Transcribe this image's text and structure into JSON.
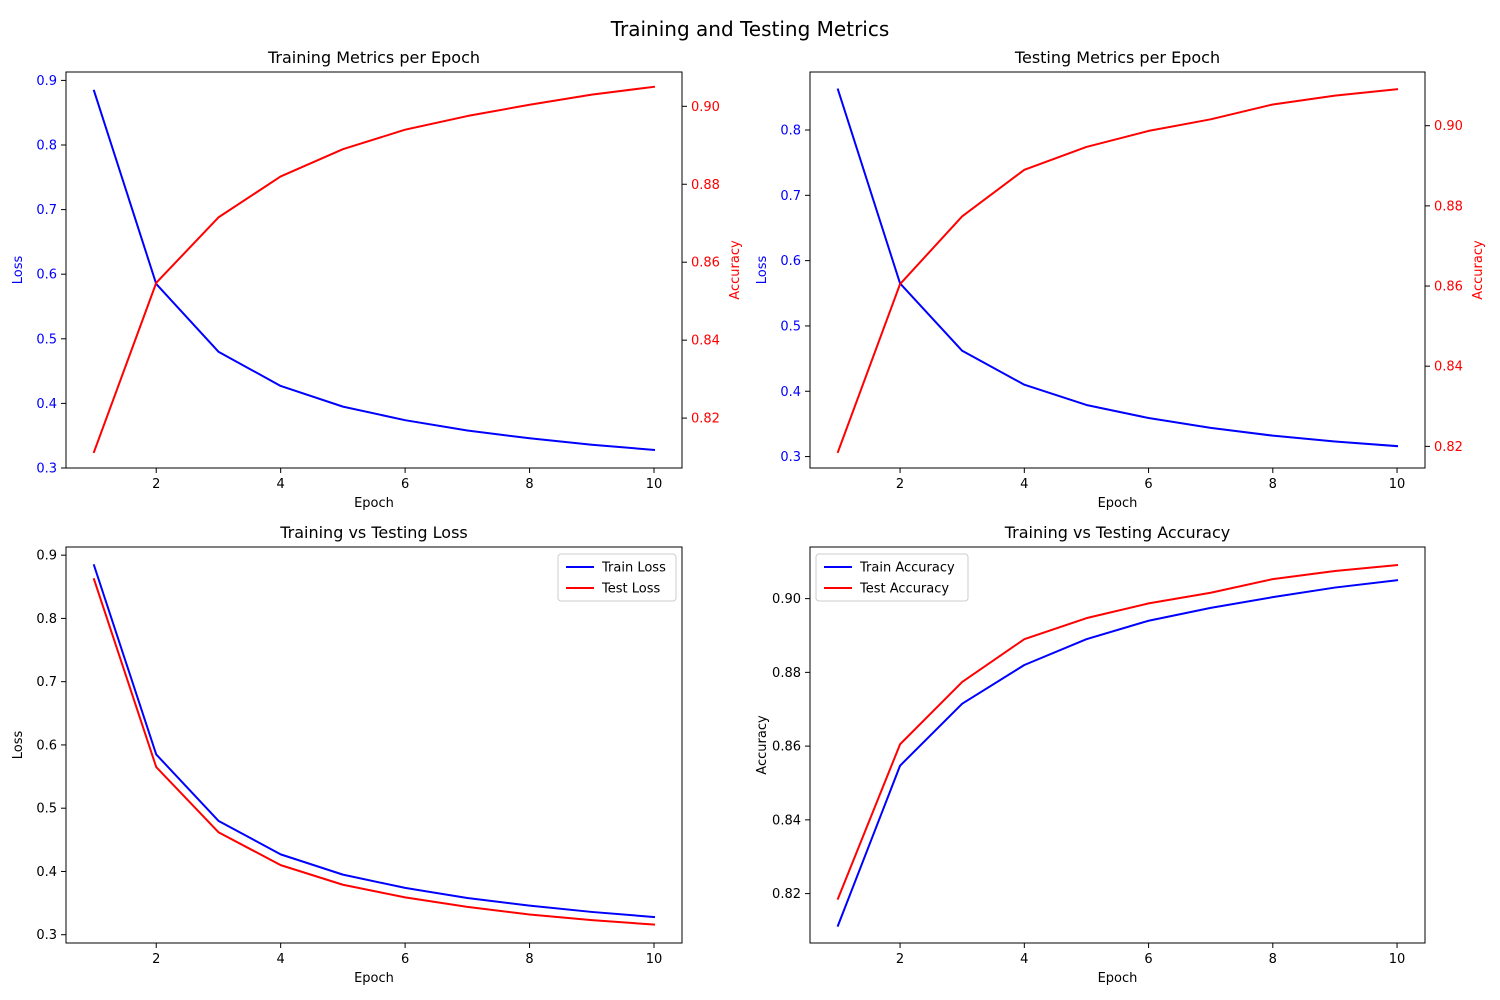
{
  "suptitle": "Training and Testing Metrics",
  "colors": {
    "blue": "#0000ff",
    "red": "#ff0000",
    "axis": "#000000"
  },
  "chart_data": [
    {
      "type": "line",
      "title": "Training Metrics per Epoch",
      "xlabel": "Epoch",
      "ylabel": "Loss",
      "ylabel_color": "blue",
      "y2label": "Accuracy",
      "y2label_color": "red",
      "xlim": [
        0.55,
        10.45
      ],
      "ylim": [
        0.3,
        0.913
      ],
      "y2lim": [
        0.8072,
        0.9088
      ],
      "xticks": [
        2,
        4,
        6,
        8,
        10
      ],
      "xtick_labels": [
        "2",
        "4",
        "6",
        "8",
        "10"
      ],
      "yticks": [
        0.3,
        0.4,
        0.5,
        0.6,
        0.7,
        0.8,
        0.9
      ],
      "ytick_labels": [
        "0.3",
        "0.4",
        "0.5",
        "0.6",
        "0.7",
        "0.8",
        "0.9"
      ],
      "y2ticks": [
        0.82,
        0.84,
        0.86,
        0.88,
        0.9
      ],
      "y2tick_labels": [
        "0.82",
        "0.84",
        "0.86",
        "0.88",
        "0.90"
      ],
      "grid": false,
      "x": [
        1,
        2,
        3,
        4,
        5,
        6,
        7,
        8,
        9,
        10
      ],
      "series": [
        {
          "axis": "left",
          "color": "blue",
          "values": [
            0.884,
            0.585,
            0.48,
            0.427,
            0.395,
            0.374,
            0.358,
            0.346,
            0.336,
            0.328
          ]
        },
        {
          "axis": "right",
          "color": "red",
          "values": [
            0.8113,
            0.8547,
            0.8715,
            0.882,
            0.889,
            0.894,
            0.8975,
            0.9004,
            0.903,
            0.905
          ]
        }
      ]
    },
    {
      "type": "line",
      "title": "Testing Metrics per Epoch",
      "xlabel": "Epoch",
      "ylabel": "Loss",
      "ylabel_color": "blue",
      "y2label": "Accuracy",
      "y2label_color": "red",
      "xlim": [
        0.55,
        10.45
      ],
      "ylim": [
        0.2825,
        0.8888
      ],
      "y2lim": [
        0.8146,
        0.9134
      ],
      "xticks": [
        2,
        4,
        6,
        8,
        10
      ],
      "xtick_labels": [
        "2",
        "4",
        "6",
        "8",
        "10"
      ],
      "yticks": [
        0.3,
        0.4,
        0.5,
        0.6,
        0.7,
        0.8
      ],
      "ytick_labels": [
        "0.3",
        "0.4",
        "0.5",
        "0.6",
        "0.7",
        "0.8"
      ],
      "y2ticks": [
        0.82,
        0.84,
        0.86,
        0.88,
        0.9
      ],
      "y2tick_labels": [
        "0.82",
        "0.84",
        "0.86",
        "0.88",
        "0.90"
      ],
      "grid": false,
      "x": [
        1,
        2,
        3,
        4,
        5,
        6,
        7,
        8,
        9,
        10
      ],
      "series": [
        {
          "axis": "left",
          "color": "blue",
          "values": [
            0.862,
            0.565,
            0.462,
            0.41,
            0.379,
            0.359,
            0.344,
            0.332,
            0.323,
            0.316
          ]
        },
        {
          "axis": "right",
          "color": "red",
          "values": [
            0.8186,
            0.8605,
            0.8774,
            0.889,
            0.8947,
            0.8987,
            0.9016,
            0.9053,
            0.9075,
            0.9091
          ]
        }
      ]
    },
    {
      "type": "line",
      "title": "Training vs Testing Loss",
      "xlabel": "Epoch",
      "ylabel": "Loss",
      "ylabel_color": "axis",
      "xlim": [
        0.55,
        10.45
      ],
      "ylim": [
        0.2869,
        0.9129
      ],
      "xticks": [
        2,
        4,
        6,
        8,
        10
      ],
      "xtick_labels": [
        "2",
        "4",
        "6",
        "8",
        "10"
      ],
      "yticks": [
        0.3,
        0.4,
        0.5,
        0.6,
        0.7,
        0.8,
        0.9
      ],
      "ytick_labels": [
        "0.3",
        "0.4",
        "0.5",
        "0.6",
        "0.7",
        "0.8",
        "0.9"
      ],
      "grid": false,
      "legend": "top-right",
      "x": [
        1,
        2,
        3,
        4,
        5,
        6,
        7,
        8,
        9,
        10
      ],
      "series": [
        {
          "name": "Train Loss",
          "axis": "left",
          "color": "blue",
          "values": [
            0.884,
            0.585,
            0.48,
            0.427,
            0.395,
            0.374,
            0.358,
            0.346,
            0.336,
            0.328
          ]
        },
        {
          "name": "Test Loss",
          "axis": "left",
          "color": "red",
          "values": [
            0.862,
            0.565,
            0.462,
            0.41,
            0.379,
            0.359,
            0.344,
            0.332,
            0.323,
            0.316
          ]
        }
      ]
    },
    {
      "type": "line",
      "title": "Training vs Testing Accuracy",
      "xlabel": "Epoch",
      "ylabel": "Accuracy",
      "ylabel_color": "axis",
      "xlim": [
        0.55,
        10.45
      ],
      "ylim": [
        0.8066,
        0.914
      ],
      "xticks": [
        2,
        4,
        6,
        8,
        10
      ],
      "xtick_labels": [
        "2",
        "4",
        "6",
        "8",
        "10"
      ],
      "yticks": [
        0.82,
        0.84,
        0.86,
        0.88,
        0.9
      ],
      "ytick_labels": [
        "0.82",
        "0.84",
        "0.86",
        "0.88",
        "0.90"
      ],
      "grid": false,
      "legend": "top-left",
      "x": [
        1,
        2,
        3,
        4,
        5,
        6,
        7,
        8,
        9,
        10
      ],
      "series": [
        {
          "name": "Train Accuracy",
          "axis": "left",
          "color": "blue",
          "values": [
            0.8113,
            0.8547,
            0.8715,
            0.882,
            0.889,
            0.894,
            0.8975,
            0.9004,
            0.903,
            0.905
          ]
        },
        {
          "name": "Test Accuracy",
          "axis": "left",
          "color": "red",
          "values": [
            0.8186,
            0.8605,
            0.8774,
            0.889,
            0.8947,
            0.8987,
            0.9016,
            0.9053,
            0.9075,
            0.9091
          ]
        }
      ]
    }
  ]
}
